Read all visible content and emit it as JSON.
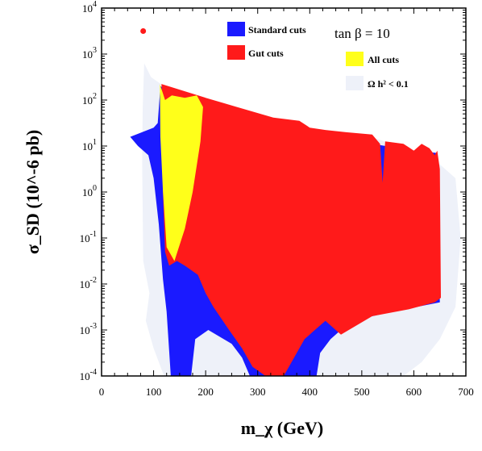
{
  "chart_data": {
    "type": "area",
    "title": "",
    "xlabel": "m_χ (GeV)",
    "ylabel": "σ_SD (10^-6 pb)",
    "xlim": [
      0,
      700
    ],
    "ylim_log10": [
      -4,
      4
    ],
    "y_scale": "log",
    "x_ticks": [
      "0",
      "100",
      "200",
      "300",
      "400",
      "500",
      "600",
      "700"
    ],
    "y_ticks": [
      {
        "base": "10",
        "exp": "-4"
      },
      {
        "base": "10",
        "exp": "-3"
      },
      {
        "base": "10",
        "exp": "-2"
      },
      {
        "base": "10",
        "exp": "-1"
      },
      {
        "base": "10",
        "exp": "0"
      },
      {
        "base": "10",
        "exp": "1"
      },
      {
        "base": "10",
        "exp": "2"
      },
      {
        "base": "10",
        "exp": "3"
      },
      {
        "base": "10",
        "exp": "4"
      }
    ],
    "annotation": "tan β = 10",
    "legend_position": "top",
    "colors": {
      "relic": "#eef1f9",
      "standard": "#1a1aff",
      "gut": "#ff1a1a",
      "all": "#ffff1a",
      "point": "#ff1a1a"
    },
    "series": [
      {
        "name": "Ω h² < 0.1",
        "key": "relic",
        "region": [
          [
            82,
            2.8
          ],
          [
            95,
            2.5
          ],
          [
            120,
            2.3
          ],
          [
            160,
            2.05
          ],
          [
            200,
            1.95
          ],
          [
            260,
            1.75
          ],
          [
            330,
            1.55
          ],
          [
            400,
            1.35
          ],
          [
            470,
            1.25
          ],
          [
            530,
            1.15
          ],
          [
            600,
            0.9
          ],
          [
            650,
            0.6
          ],
          [
            680,
            0.3
          ],
          [
            690,
            -1
          ],
          [
            680,
            -2.5
          ],
          [
            650,
            -3.2
          ],
          [
            615,
            -3.7
          ],
          [
            580,
            -4
          ],
          [
            120,
            -4
          ],
          [
            100,
            -3.4
          ],
          [
            85,
            -2.8
          ],
          [
            92,
            -2.2
          ],
          [
            80,
            -1.5
          ],
          [
            78,
            0.6
          ],
          [
            79,
            1.8
          ]
        ]
      },
      {
        "name": "Standard cuts",
        "key": "standard",
        "region": [
          [
            55,
            1.2
          ],
          [
            100,
            1.4
          ],
          [
            108,
            1.5
          ],
          [
            113,
            2.3
          ],
          [
            130,
            2.2
          ],
          [
            200,
            1.95
          ],
          [
            300,
            1.6
          ],
          [
            380,
            1.3
          ],
          [
            450,
            1.15
          ],
          [
            520,
            1.05
          ],
          [
            600,
            0.9
          ],
          [
            645,
            0.85
          ],
          [
            650,
            -2.4
          ],
          [
            560,
            -2.6
          ],
          [
            480,
            -2.8
          ],
          [
            440,
            -3.2
          ],
          [
            420,
            -3.5
          ],
          [
            413,
            -4
          ],
          [
            285,
            -4
          ],
          [
            270,
            -3.6
          ],
          [
            250,
            -3.3
          ],
          [
            205,
            -3.0
          ],
          [
            180,
            -3.2
          ],
          [
            172,
            -4
          ],
          [
            133,
            -4
          ],
          [
            125,
            -2.6
          ],
          [
            118,
            -1.9
          ],
          [
            110,
            -0.7
          ],
          [
            100,
            0.3
          ],
          [
            90,
            0.8
          ],
          [
            70,
            1.0
          ]
        ]
      },
      {
        "name": "Gut cuts",
        "key": "gut",
        "region": [
          [
            115,
            2.35
          ],
          [
            200,
            2.05
          ],
          [
            260,
            1.85
          ],
          [
            330,
            1.62
          ],
          [
            380,
            1.55
          ],
          [
            400,
            1.4
          ],
          [
            430,
            1.35
          ],
          [
            470,
            1.3
          ],
          [
            520,
            1.25
          ],
          [
            535,
            1.05
          ],
          [
            540,
            0.2
          ],
          [
            545,
            1.1
          ],
          [
            580,
            1.05
          ],
          [
            600,
            0.9
          ],
          [
            615,
            1.05
          ],
          [
            630,
            0.95
          ],
          [
            640,
            0.8
          ],
          [
            645,
            0.9
          ],
          [
            650,
            0.5
          ],
          [
            652,
            -2.3
          ],
          [
            640,
            -2.4
          ],
          [
            590,
            -2.55
          ],
          [
            520,
            -2.7
          ],
          [
            460,
            -3.1
          ],
          [
            430,
            -2.8
          ],
          [
            405,
            -3.05
          ],
          [
            390,
            -3.2
          ],
          [
            350,
            -4
          ],
          [
            315,
            -4
          ],
          [
            290,
            -3.8
          ],
          [
            270,
            -3.4
          ],
          [
            245,
            -3.0
          ],
          [
            215,
            -2.5
          ],
          [
            200,
            -2.2
          ],
          [
            185,
            -1.8
          ],
          [
            160,
            -1.6
          ],
          [
            145,
            -1.5
          ],
          [
            130,
            -1.6
          ],
          [
            122,
            -1.3
          ],
          [
            118,
            0
          ],
          [
            120,
            1.5
          ]
        ]
      },
      {
        "name": "All cuts",
        "key": "all",
        "region": [
          [
            112,
            2.35
          ],
          [
            122,
            2.0
          ],
          [
            135,
            2.1
          ],
          [
            160,
            2.05
          ],
          [
            183,
            2.1
          ],
          [
            195,
            1.85
          ],
          [
            190,
            1.1
          ],
          [
            175,
            0.0
          ],
          [
            160,
            -0.8
          ],
          [
            140,
            -1.5
          ],
          [
            125,
            -1.2
          ],
          [
            118,
            0
          ],
          [
            113,
            1.2
          ]
        ]
      }
    ],
    "points": [
      {
        "x": 80,
        "y_log10": 3.5
      }
    ]
  }
}
